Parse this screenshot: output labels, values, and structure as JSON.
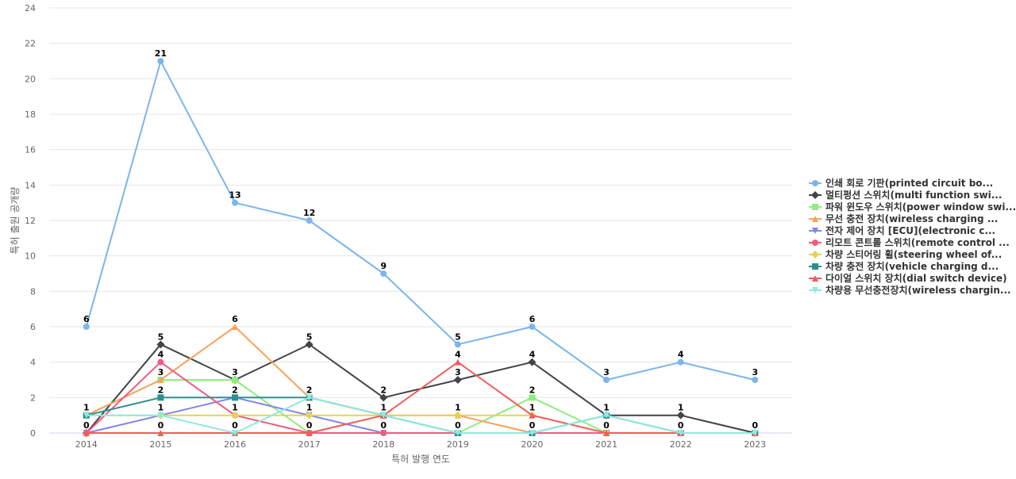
{
  "chart_data": {
    "type": "line",
    "xlabel": "특허 발행 연도",
    "ylabel": "특허 출원 공개량",
    "ylim": [
      0,
      24
    ],
    "ytick_step": 2,
    "grid": true,
    "legend_position": "right",
    "categories": [
      "2014",
      "2015",
      "2016",
      "2017",
      "2018",
      "2019",
      "2020",
      "2021",
      "2022",
      "2023"
    ],
    "series": [
      {
        "name": "인쇄 회로 기판(printed circuit bo...",
        "color": "#7cb5ec",
        "marker": "circle",
        "values": [
          6,
          21,
          13,
          12,
          9,
          5,
          6,
          3,
          4,
          3
        ]
      },
      {
        "name": "멀티펑션 스위치(multi function swi...",
        "color": "#434348",
        "marker": "diamond",
        "values": [
          0,
          5,
          3,
          5,
          2,
          3,
          4,
          1,
          1,
          0
        ]
      },
      {
        "name": "파워 윈도우 스위치(power window swi...",
        "color": "#90ed7d",
        "marker": "square",
        "values": [
          1,
          3,
          3,
          0,
          1,
          0,
          2,
          0,
          0,
          0
        ]
      },
      {
        "name": "무선 충전 장치(wireless charging ...",
        "color": "#f7a35c",
        "marker": "triangle",
        "values": [
          1,
          3,
          6,
          2,
          1,
          1,
          0,
          0,
          0,
          0
        ]
      },
      {
        "name": "전자 제어 장치 [ECU](electronic c...",
        "color": "#8085e9",
        "marker": "triangle-down",
        "values": [
          0,
          1,
          2,
          1,
          0,
          0,
          0,
          0,
          0,
          0
        ]
      },
      {
        "name": "리모트 콘트롤 스위치(remote control ...",
        "color": "#f15c80",
        "marker": "circle",
        "values": [
          0,
          4,
          1,
          0,
          0,
          0,
          0,
          0,
          0,
          0
        ]
      },
      {
        "name": "차량 스티어링 휠(steering wheel of...",
        "color": "#e4d354",
        "marker": "diamond",
        "values": [
          1,
          1,
          1,
          1,
          1,
          1,
          1,
          0,
          0,
          0
        ]
      },
      {
        "name": "차량 충전 장치(vehicle charging d...",
        "color": "#2b908f",
        "marker": "square",
        "values": [
          1,
          2,
          2,
          2,
          1,
          0,
          0,
          1,
          0,
          0
        ]
      },
      {
        "name": "다이얼 스위치 장치(dial switch device)",
        "color": "#f45b5b",
        "marker": "triangle",
        "values": [
          0,
          0,
          0,
          0,
          1,
          4,
          1,
          0,
          0,
          0
        ]
      },
      {
        "name": "차량용 무선충전장치(wireless chargin...",
        "color": "#91e8e1",
        "marker": "triangle-down",
        "values": [
          1,
          1,
          0,
          2,
          1,
          0,
          0,
          1,
          0,
          0
        ]
      }
    ],
    "data_labels": {
      "2014": [
        6,
        1,
        0
      ],
      "2015": [
        21,
        5,
        4,
        3,
        2,
        1,
        0
      ],
      "2016": [
        13,
        6,
        3,
        2,
        1,
        0
      ],
      "2017": [
        12,
        5,
        2,
        1,
        0
      ],
      "2018": [
        9,
        2,
        1,
        0
      ],
      "2019": [
        5,
        4,
        3,
        1,
        0
      ],
      "2020": [
        6,
        4,
        2,
        1,
        0
      ],
      "2021": [
        3,
        1,
        0
      ],
      "2022": [
        4,
        1,
        0
      ],
      "2023": [
        3,
        0
      ]
    }
  }
}
